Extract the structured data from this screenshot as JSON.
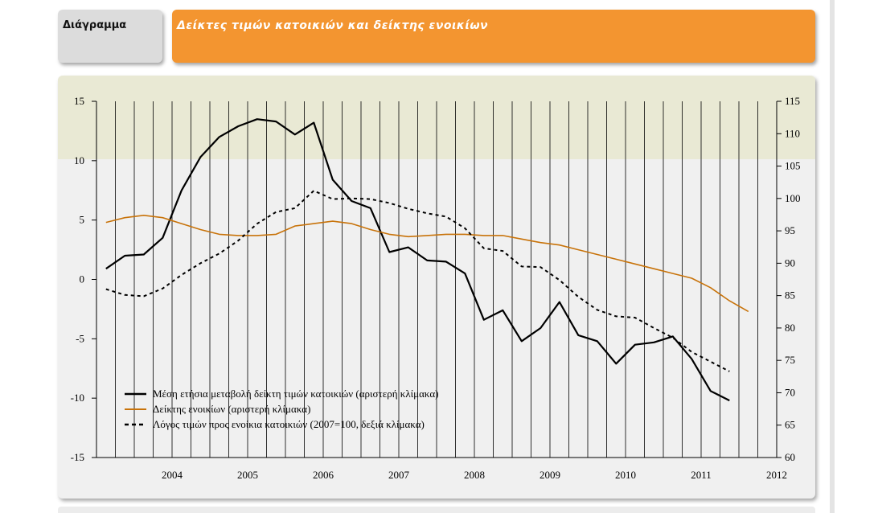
{
  "header": {
    "label": "Διάγραμμα",
    "title": "Δείκτες τιμών κατοικιών και δείκτης ενοικίων"
  },
  "colors": {
    "title_bar": "#f39530",
    "label_tab": "#dcdcdc",
    "rent_line": "#c8730a",
    "price_change_line": "#000000",
    "ratio_line": "#000000"
  },
  "chart_data": {
    "type": "line",
    "title": "Δείκτες τιμών κατοικιών και δείκτης ενοικίων",
    "x_ticks": [
      "2004",
      "2005",
      "2006",
      "2007",
      "2008",
      "2009",
      "2010",
      "2011",
      "2012"
    ],
    "y_left": {
      "range": [
        -15,
        15
      ],
      "ticks": [
        "15",
        "10",
        "5",
        "0",
        "-5",
        "-10",
        "-15"
      ]
    },
    "y_right": {
      "range": [
        60,
        115
      ],
      "ticks": [
        "115",
        "110",
        "105",
        "100",
        "95",
        "90",
        "85",
        "80",
        "75",
        "70",
        "65",
        "60"
      ]
    },
    "grid": "vertical quarterly lines",
    "legend_position": "bottom-left",
    "series": [
      {
        "name": "Μέση ετήσια μεταβολή δείκτη τιμών κατοικιών (αριστερή κλίμακα)",
        "axis": "left",
        "style": "solid-black",
        "x": [
          2003.625,
          2003.875,
          2004.125,
          2004.375,
          2004.625,
          2004.875,
          2005.125,
          2005.375,
          2005.625,
          2005.875,
          2006.125,
          2006.375,
          2006.625,
          2006.875,
          2007.125,
          2007.375,
          2007.625,
          2007.875,
          2008.125,
          2008.375,
          2008.625,
          2008.875,
          2009.125,
          2009.375,
          2009.625,
          2009.875,
          2010.125,
          2010.375,
          2010.625,
          2010.875,
          2011.125,
          2011.375,
          2011.625,
          2011.875
        ],
        "values": [
          0.9,
          2.0,
          2.1,
          3.5,
          7.5,
          10.3,
          12.0,
          12.9,
          13.5,
          13.3,
          12.2,
          13.2,
          8.4,
          6.6,
          6.0,
          2.3,
          2.7,
          1.6,
          1.5,
          0.5,
          -3.4,
          -2.6,
          -5.2,
          -4.1,
          -1.9,
          -4.7,
          -5.2,
          -7.1,
          -5.5,
          -5.3,
          -4.8,
          -6.7,
          -9.4,
          -10.2
        ]
      },
      {
        "name": "Δείκτης ενοικίων  (αριστερή κλίμακα)",
        "axis": "left",
        "style": "solid-orange",
        "x": [
          2003.625,
          2003.875,
          2004.125,
          2004.375,
          2004.625,
          2004.875,
          2005.125,
          2005.375,
          2005.625,
          2005.875,
          2006.125,
          2006.375,
          2006.625,
          2006.875,
          2007.125,
          2007.375,
          2007.625,
          2007.875,
          2008.125,
          2008.375,
          2008.625,
          2008.875,
          2009.125,
          2009.375,
          2009.625,
          2009.875,
          2010.125,
          2010.375,
          2010.625,
          2010.875,
          2011.125,
          2011.375,
          2011.625,
          2011.875,
          2012.125
        ],
        "values": [
          4.8,
          5.2,
          5.4,
          5.2,
          4.7,
          4.2,
          3.8,
          3.7,
          3.7,
          3.8,
          4.5,
          4.7,
          4.9,
          4.7,
          4.2,
          3.8,
          3.6,
          3.7,
          3.8,
          3.8,
          3.7,
          3.7,
          3.4,
          3.1,
          2.9,
          2.5,
          2.1,
          1.7,
          1.3,
          0.9,
          0.5,
          0.1,
          -0.7,
          -1.8,
          -2.7
        ]
      },
      {
        "name": "Λόγος τιμών προς ενοίκια κατοικιών (2007=100, δεξιά κλίμακα)",
        "axis": "right",
        "style": "dashed-black",
        "x": [
          2003.625,
          2003.875,
          2004.125,
          2004.375,
          2004.625,
          2004.875,
          2005.125,
          2005.375,
          2005.625,
          2005.875,
          2006.125,
          2006.375,
          2006.625,
          2006.875,
          2007.125,
          2007.375,
          2007.625,
          2007.875,
          2008.125,
          2008.375,
          2008.625,
          2008.875,
          2009.125,
          2009.375,
          2009.625,
          2009.875,
          2010.125,
          2010.375,
          2010.625,
          2010.875,
          2011.125,
          2011.375,
          2011.625,
          2011.875
        ],
        "values": [
          86.0,
          85.1,
          84.9,
          86.1,
          88.2,
          90.0,
          91.5,
          93.5,
          96.1,
          97.9,
          98.5,
          101.2,
          99.9,
          100.0,
          99.9,
          99.3,
          98.4,
          97.7,
          97.2,
          95.4,
          92.3,
          91.9,
          89.5,
          89.4,
          87.4,
          84.8,
          82.8,
          81.8,
          81.6,
          80.0,
          78.5,
          76.3,
          74.8,
          73.3
        ]
      }
    ]
  }
}
